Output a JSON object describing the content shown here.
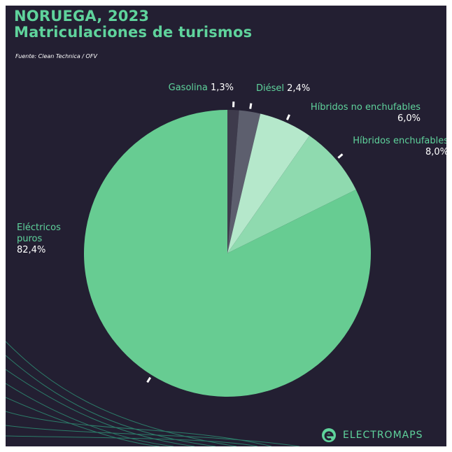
{
  "chart_data": {
    "type": "pie",
    "title": "NORUEGA, 2023",
    "subtitle": "Matriculaciones de turismos",
    "source": "Fuente: Clean Technica / OFV",
    "brand": "ELECTROMAPS",
    "categories": [
      "Gasolina",
      "Diésel",
      "Híbridos no enchufables",
      "Híbridos enchufables",
      "Eléctricos puros"
    ],
    "values": [
      1.3,
      2.4,
      6.0,
      8.0,
      82.4
    ],
    "value_labels": [
      "1,3%",
      "2,4%",
      "6,0%",
      "8,0%",
      "82,4%"
    ],
    "colors": [
      "#3e3b4c",
      "#5d5f6e",
      "#b5e8cb",
      "#8fdaaf",
      "#67cc92"
    ]
  }
}
